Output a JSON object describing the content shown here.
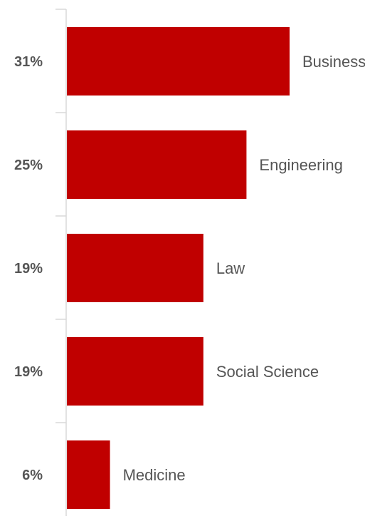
{
  "chart_data": {
    "type": "bar",
    "orientation": "horizontal",
    "categories": [
      "Business",
      "Engineering",
      "Law",
      "Social Science",
      "Medicine"
    ],
    "values": [
      31,
      25,
      19,
      19,
      6
    ],
    "value_labels": [
      "31%",
      "25%",
      "19%",
      "19%",
      "6%"
    ],
    "unit": "%",
    "xlim": [
      0,
      31
    ],
    "grid": false,
    "legend": "none",
    "colors": {
      "bar": "#c00000",
      "axis": "#d9d9d9",
      "text": "#555555"
    }
  }
}
